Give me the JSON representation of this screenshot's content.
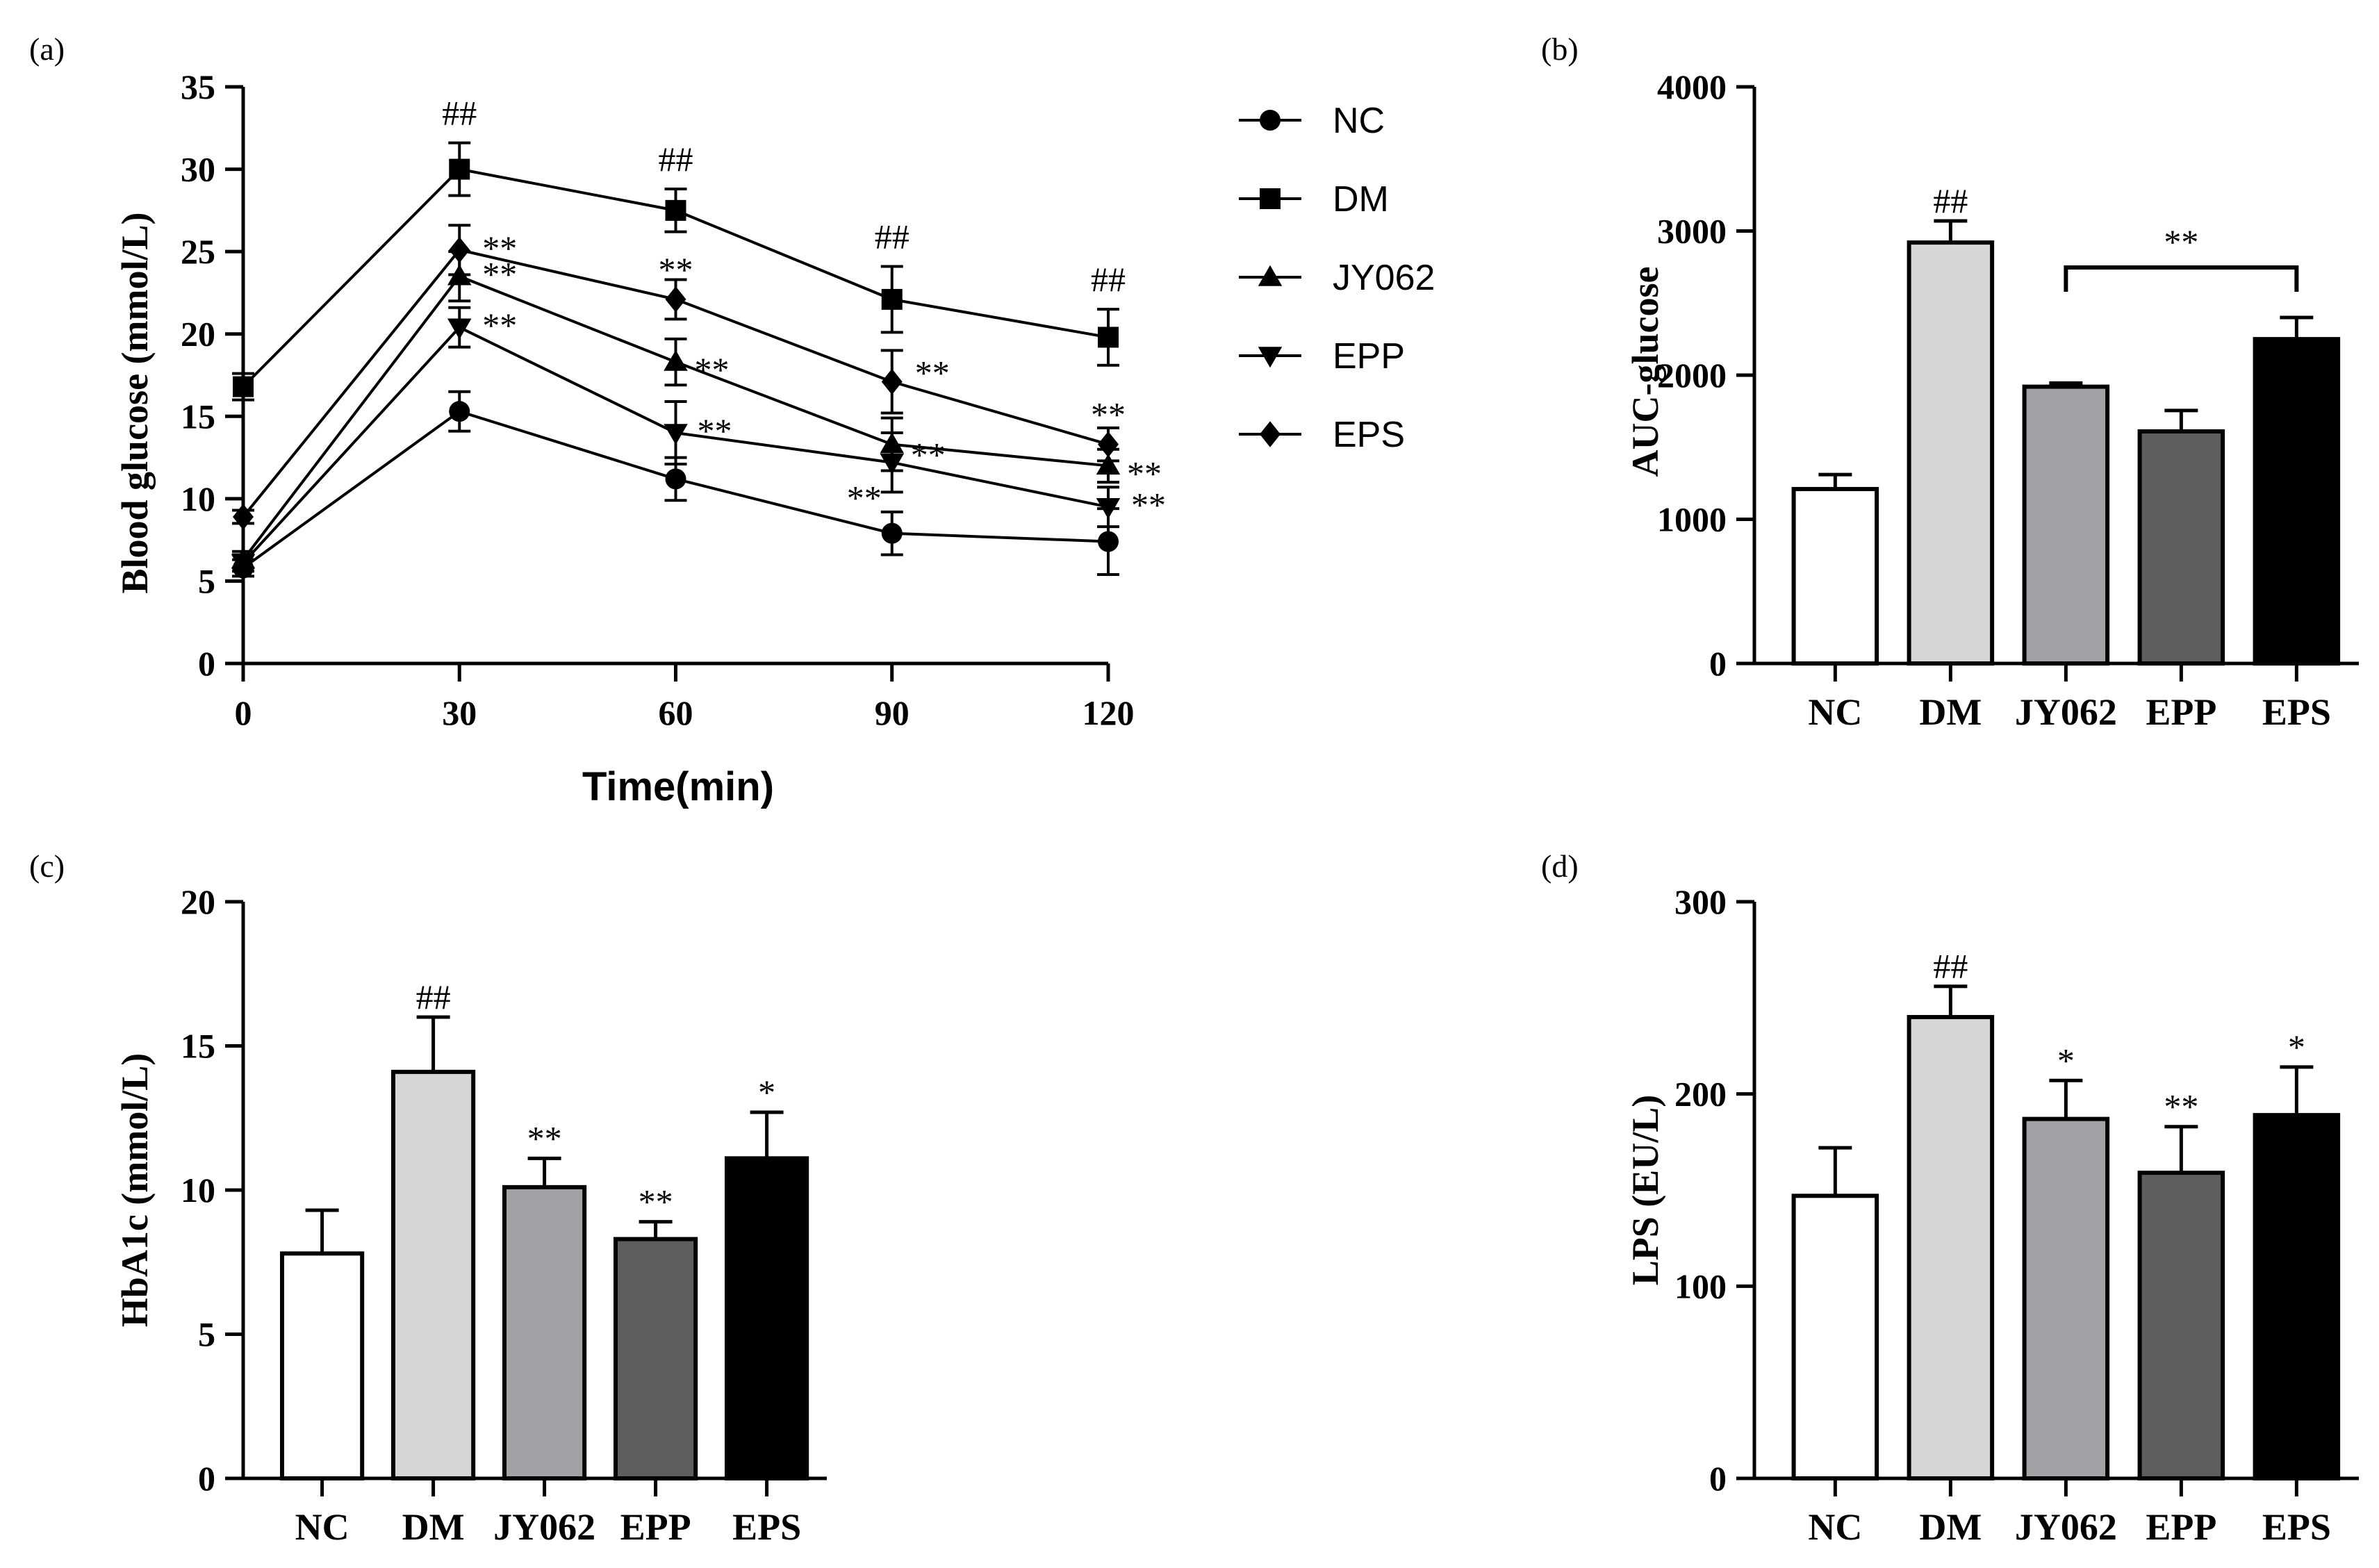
{
  "chart_data": [
    {
      "type": "line",
      "panel": "(a)",
      "xlabel": "Time(min)",
      "ylabel": "Blood glucose (mmol/L)",
      "x": [
        0,
        30,
        60,
        90,
        120
      ],
      "xticks": [
        "0",
        "30",
        "60",
        "90",
        "120"
      ],
      "yticks": [
        "0",
        "5",
        "10",
        "15",
        "20",
        "25",
        "30",
        "35"
      ],
      "xlim": [
        0,
        120
      ],
      "ylim": [
        0,
        35
      ],
      "legend_position": "top-right outside",
      "series": [
        {
          "name": "NC",
          "marker": "circle",
          "values": [
            5.8,
            15.3,
            11.2,
            7.9,
            7.4
          ],
          "errors": [
            0.5,
            1.2,
            1.3,
            1.3,
            2.0
          ]
        },
        {
          "name": "DM",
          "marker": "square",
          "values": [
            16.8,
            30.0,
            27.5,
            22.1,
            19.8
          ],
          "errors": [
            0.8,
            1.6,
            1.3,
            2.0,
            1.7
          ]
        },
        {
          "name": "JY062",
          "marker": "triangle-up",
          "values": [
            6.3,
            23.5,
            18.3,
            13.3,
            12.0
          ],
          "errors": [
            0.5,
            1.5,
            1.4,
            1.6,
            1.0
          ]
        },
        {
          "name": "EPP",
          "marker": "triangle-down",
          "values": [
            6.1,
            20.4,
            14.0,
            12.2,
            9.5
          ],
          "errors": [
            0.5,
            1.2,
            1.9,
            1.8,
            1.2
          ]
        },
        {
          "name": "EPS",
          "marker": "diamond",
          "values": [
            8.9,
            25.1,
            22.1,
            17.1,
            13.3
          ],
          "errors": [
            0.4,
            1.5,
            1.2,
            1.9,
            1.0
          ]
        }
      ],
      "annotations": [
        {
          "text": "##",
          "series": "DM",
          "x": 30
        },
        {
          "text": "##",
          "series": "DM",
          "x": 60
        },
        {
          "text": "##",
          "series": "DM",
          "x": 90
        },
        {
          "text": "##",
          "series": "DM",
          "x": 120
        },
        {
          "text": "**",
          "series": "EPS",
          "x": 30
        },
        {
          "text": "**",
          "series": "JY062",
          "x": 30
        },
        {
          "text": "**",
          "series": "EPP",
          "x": 30
        },
        {
          "text": "**",
          "series": "EPS",
          "x": 60
        },
        {
          "text": "**",
          "series": "JY062",
          "x": 60
        },
        {
          "text": "**",
          "series": "EPP",
          "x": 60
        },
        {
          "text": "**",
          "series": "EPS",
          "x": 90
        },
        {
          "text": "**",
          "series": "JY062",
          "x": 90
        },
        {
          "text": "**",
          "series": "EPP",
          "x": 90
        },
        {
          "text": "**",
          "series": "EPS",
          "x": 120
        },
        {
          "text": "**",
          "series": "JY062",
          "x": 120
        },
        {
          "text": "**",
          "series": "EPP",
          "x": 120
        }
      ]
    },
    {
      "type": "bar",
      "panel": "(b)",
      "xlabel": "",
      "ylabel": "AUC-glucose",
      "categories": [
        "NC",
        "DM",
        "JY062",
        "EPP",
        "EPS"
      ],
      "values": [
        1210,
        2920,
        1920,
        1610,
        2250
      ],
      "errors": [
        100,
        150,
        25,
        145,
        150
      ],
      "colors": [
        "#ffffff",
        "#d6d6d6",
        "#a2a1a6",
        "#5e5e5e",
        "#000000"
      ],
      "ylim": [
        0,
        4000
      ],
      "yticks": [
        "0",
        "1000",
        "2000",
        "3000",
        "4000"
      ],
      "annotations": [
        {
          "text": "##",
          "category": "DM"
        }
      ],
      "bracket": {
        "from": "JY062",
        "to": "EPS",
        "text": "**"
      }
    },
    {
      "type": "bar",
      "panel": "(c)",
      "xlabel": "",
      "ylabel": "HbA1c (mmol/L)",
      "categories": [
        "NC",
        "DM",
        "JY062",
        "EPP",
        "EPS"
      ],
      "values": [
        7.8,
        14.1,
        10.1,
        8.3,
        11.1
      ],
      "errors": [
        1.5,
        1.9,
        1.0,
        0.6,
        1.6
      ],
      "colors": [
        "#ffffff",
        "#d6d6d6",
        "#a2a1a6",
        "#5e5e5e",
        "#000000"
      ],
      "ylim": [
        0,
        20
      ],
      "yticks": [
        "0",
        "5",
        "10",
        "15",
        "20"
      ],
      "annotations": [
        {
          "text": "",
          "category": "NC"
        },
        {
          "text": "##",
          "category": "DM"
        },
        {
          "text": "**",
          "category": "JY062"
        },
        {
          "text": "**",
          "category": "EPP"
        },
        {
          "text": "*",
          "category": "EPS"
        }
      ]
    },
    {
      "type": "bar",
      "panel": "(d)",
      "xlabel": "",
      "ylabel": "LPS (EU/L)",
      "categories": [
        "NC",
        "DM",
        "JY062",
        "EPP",
        "EPS"
      ],
      "values": [
        147,
        240,
        187,
        159,
        189
      ],
      "errors": [
        25,
        16,
        20,
        24,
        25
      ],
      "colors": [
        "#ffffff",
        "#d6d6d6",
        "#a2a1a6",
        "#5e5e5e",
        "#000000"
      ],
      "ylim": [
        0,
        300
      ],
      "yticks": [
        "0",
        "100",
        "200",
        "300"
      ],
      "annotations": [
        {
          "text": "",
          "category": "NC"
        },
        {
          "text": "##",
          "category": "DM"
        },
        {
          "text": "*",
          "category": "JY062"
        },
        {
          "text": "**",
          "category": "EPP"
        },
        {
          "text": "*",
          "category": "EPS"
        }
      ]
    }
  ]
}
